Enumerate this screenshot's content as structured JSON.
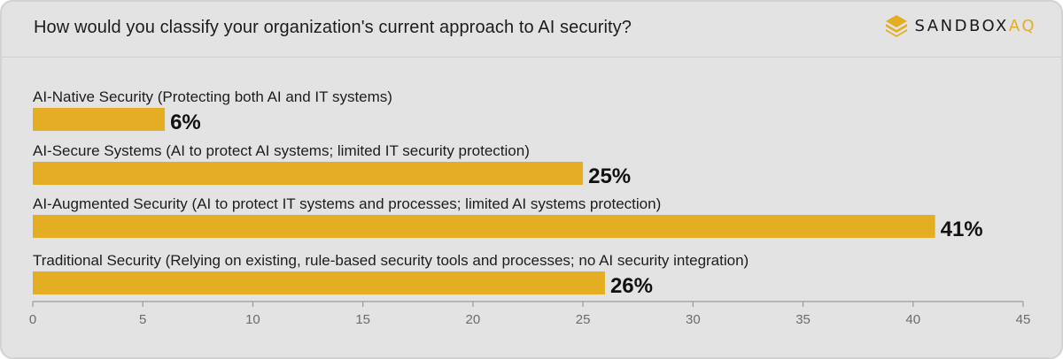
{
  "header": {
    "title": "How would you classify your organization's current approach to AI security?",
    "logo_main": "SANDBOX",
    "logo_accent": "AQ",
    "logo_name": "sandboxaq-logo-icon"
  },
  "colors": {
    "bar": "#e5ad24",
    "background": "#e3e3e3",
    "axis": "#9a9a9a",
    "logo_accent": "#e5ad24"
  },
  "chart_data": {
    "type": "bar",
    "orientation": "horizontal",
    "title": "How would you classify your organization's current approach to AI security?",
    "categories": [
      "AI-Native Security (Protecting both AI and IT systems)",
      "AI-Secure Systems (AI to protect AI systems; limited IT security protection)",
      "AI-Augmented Security (AI to protect IT systems and processes; limited AI systems protection)",
      "Traditional Security (Relying on existing, rule-based security tools and processes; no AI security integration)"
    ],
    "values": [
      6,
      25,
      41,
      26
    ],
    "value_labels": [
      "6%",
      "25%",
      "41%",
      "26%"
    ],
    "xlim": [
      0,
      45
    ],
    "xticks": [
      0,
      5,
      10,
      15,
      20,
      25,
      30,
      35,
      40,
      45
    ],
    "xlabel": "",
    "ylabel": "",
    "grid": false
  }
}
